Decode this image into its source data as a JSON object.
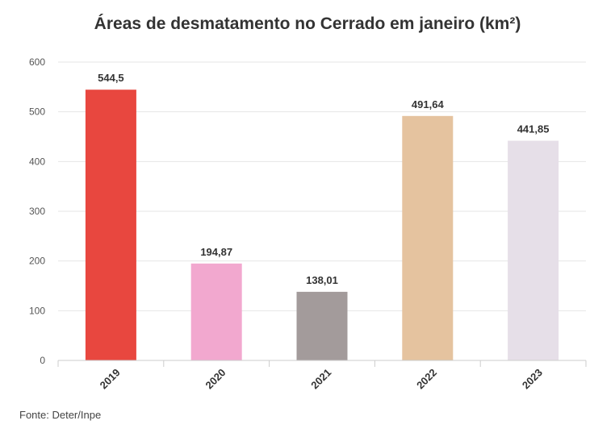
{
  "chart_data": {
    "type": "bar",
    "title": "Áreas de desmatamento no Cerrado em janeiro (km²)",
    "categories": [
      "2019",
      "2020",
      "2021",
      "2022",
      "2023"
    ],
    "values": [
      544.5,
      194.87,
      138.01,
      491.64,
      441.85
    ],
    "value_labels": [
      "544,5",
      "194,87",
      "138,01",
      "491,64",
      "441,85"
    ],
    "colors": [
      "#e8473f",
      "#f2a8cf",
      "#a39b9b",
      "#e5c39f",
      "#e6dfe8"
    ],
    "ylim": [
      0,
      600
    ],
    "yticks": [
      0,
      100,
      200,
      300,
      400,
      500,
      600
    ],
    "xlabel": "",
    "ylabel": "",
    "grid": true,
    "legend": "none"
  },
  "source": "Fonte: Deter/Inpe"
}
